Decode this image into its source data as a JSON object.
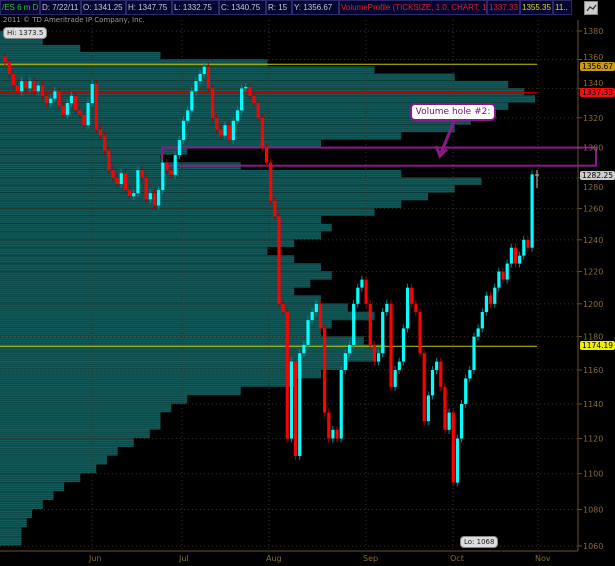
{
  "header": {
    "symbol": "/ES 6 m D",
    "date": "D: 7/22/11",
    "open": "O: 1341.25",
    "high": "H: 1347.75",
    "low": "L: 1332.75",
    "close": "C: 1340.75",
    "range": "R: 15",
    "y": "Y: 1356.67",
    "study": "VolumeProfile (TICKSIZE, 1.0, CHART, 1, No, 1000, No, No, 70, 20)",
    "study_val1": "1337.33",
    "study_val2": "1355.35",
    "study_val3": "11..",
    "settings_icon": "chart-settings-icon"
  },
  "copyright": "2011 © TD Ameritrade IP Company, Inc.",
  "annotation": "Volume hole #2:",
  "hi_label": "Hi: 1373.5",
  "lo_label": "Lo: 1068",
  "badges": {
    "b1": "1356.67",
    "b2": "1337.33",
    "b3": "1282.25",
    "b4": "1174.19"
  },
  "colors": {
    "up": "#00ffff",
    "down": "#ff0000",
    "profile": "#0b4a4a",
    "value_area_line": "#c8c800",
    "poc_line": "#cc0000",
    "highlight_box": "#8a1a8a"
  },
  "chart_data": {
    "type": "candlestick",
    "yscale": "log",
    "ylim": [
      1060,
      1380
    ],
    "grid": true,
    "y_ticks": [
      1380,
      1360,
      1340,
      1320,
      1300,
      1280,
      1260,
      1240,
      1220,
      1200,
      1180,
      1160,
      1140,
      1120,
      1100,
      1080,
      1060
    ],
    "x_ticks": [
      "Jun",
      "Jul",
      "Aug",
      "Sep",
      "Oct",
      "Nov"
    ],
    "closes": [
      1358,
      1350,
      1342,
      1338,
      1345,
      1340,
      1345,
      1338,
      1342,
      1335,
      1330,
      1333,
      1338,
      1328,
      1322,
      1330,
      1335,
      1325,
      1322,
      1315,
      1330,
      1343,
      1312,
      1308,
      1298,
      1285,
      1280,
      1276,
      1283,
      1272,
      1268,
      1270,
      1285,
      1280,
      1266,
      1270,
      1262,
      1272,
      1290,
      1285,
      1282,
      1295,
      1305,
      1318,
      1325,
      1338,
      1345,
      1350,
      1355,
      1340,
      1320,
      1312,
      1308,
      1315,
      1305,
      1318,
      1325,
      1340,
      1341,
      1335,
      1330,
      1320,
      1300,
      1290,
      1265,
      1255,
      1200,
      1195,
      1120,
      1165,
      1110,
      1170,
      1175,
      1190,
      1195,
      1200,
      1185,
      1135,
      1120,
      1125,
      1120,
      1160,
      1170,
      1175,
      1200,
      1210,
      1215,
      1200,
      1175,
      1165,
      1170,
      1195,
      1200,
      1150,
      1160,
      1165,
      1185,
      1210,
      1200,
      1195,
      1170,
      1130,
      1145,
      1160,
      1165,
      1150,
      1125,
      1135,
      1095,
      1120,
      1140,
      1155,
      1160,
      1180,
      1185,
      1195,
      1205,
      1200,
      1210,
      1220,
      1215,
      1225,
      1235,
      1225,
      1230,
      1240,
      1235,
      1282.25
    ],
    "lines": [
      {
        "price": 1356.67,
        "kind": "value-area-high"
      },
      {
        "price": 1337.33,
        "kind": "point-of-control"
      },
      {
        "price": 1174.19,
        "kind": "value-area-low"
      }
    ],
    "highlight_box": {
      "from_price": 1288,
      "to_price": 1300
    },
    "volume_profile": {
      "start_price": 1060,
      "price_step": 5,
      "relative_volume": [
        0.04,
        0.04,
        0.05,
        0.06,
        0.08,
        0.1,
        0.12,
        0.15,
        0.18,
        0.2,
        0.22,
        0.25,
        0.28,
        0.3,
        0.3,
        0.32,
        0.35,
        0.45,
        0.55,
        0.6,
        0.65,
        0.7,
        0.72,
        0.68,
        0.6,
        0.62,
        0.7,
        0.65,
        0.6,
        0.55,
        0.58,
        0.62,
        0.6,
        0.55,
        0.5,
        0.55,
        0.6,
        0.62,
        0.6,
        0.7,
        0.75,
        0.8,
        0.85,
        0.9,
        0.75,
        0.45,
        0.3,
        0.35,
        0.6,
        0.75,
        0.85,
        0.88,
        0.92,
        0.95,
        1.0,
        0.98,
        0.95,
        0.85,
        0.7,
        0.5,
        0.3,
        0.15,
        0.08,
        0.04
      ]
    }
  }
}
